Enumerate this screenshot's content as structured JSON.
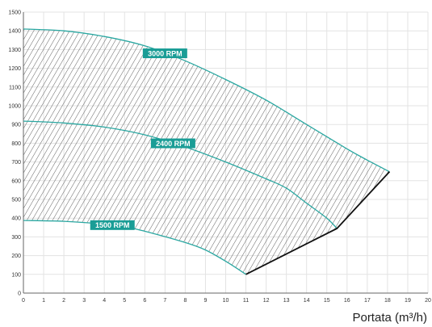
{
  "chart_data": {
    "type": "area",
    "xlabel": "Portata (m³/h)",
    "ylabel": "",
    "xlim": [
      0,
      20
    ],
    "ylim": [
      0,
      1500
    ],
    "x_ticks": [
      0,
      1,
      2,
      3,
      4,
      5,
      6,
      7,
      8,
      9,
      10,
      11,
      12,
      13,
      14,
      15,
      16,
      17,
      18,
      19,
      20
    ],
    "y_ticks": [
      0,
      100,
      200,
      300,
      400,
      500,
      600,
      700,
      800,
      900,
      1000,
      1100,
      1200,
      1300,
      1400,
      1500
    ],
    "grid": true,
    "fill": "hatched",
    "series": [
      {
        "name": "3000 RPM",
        "points": [
          [
            0,
            1410
          ],
          [
            2,
            1400
          ],
          [
            4,
            1370
          ],
          [
            6,
            1320
          ],
          [
            8,
            1240
          ],
          [
            10,
            1140
          ],
          [
            12,
            1030
          ],
          [
            14,
            900
          ],
          [
            16,
            770
          ],
          [
            17,
            710
          ],
          [
            18.1,
            648
          ]
        ]
      },
      {
        "name": "2400 RPM",
        "points": [
          [
            0,
            918
          ],
          [
            2,
            908
          ],
          [
            4,
            886
          ],
          [
            6,
            845
          ],
          [
            8,
            780
          ],
          [
            10,
            700
          ],
          [
            12,
            610
          ],
          [
            13,
            560
          ],
          [
            14,
            480
          ],
          [
            15,
            400
          ],
          [
            15.5,
            345
          ]
        ]
      },
      {
        "name": "1500 RPM",
        "points": [
          [
            0,
            388
          ],
          [
            2,
            383
          ],
          [
            4,
            368
          ],
          [
            5,
            355
          ],
          [
            6,
            330
          ],
          [
            8,
            270
          ],
          [
            9,
            230
          ],
          [
            10,
            170
          ],
          [
            11,
            100
          ]
        ]
      }
    ],
    "boundary": {
      "points": [
        [
          11,
          100
        ],
        [
          15.5,
          345
        ],
        [
          18.1,
          648
        ]
      ]
    },
    "colors": {
      "curve": "#2aa7a1",
      "label_bg": "#1a9d96",
      "boundary": "#111111",
      "grid": "#e3e3e3",
      "hatch": "#3a3a3a"
    }
  }
}
